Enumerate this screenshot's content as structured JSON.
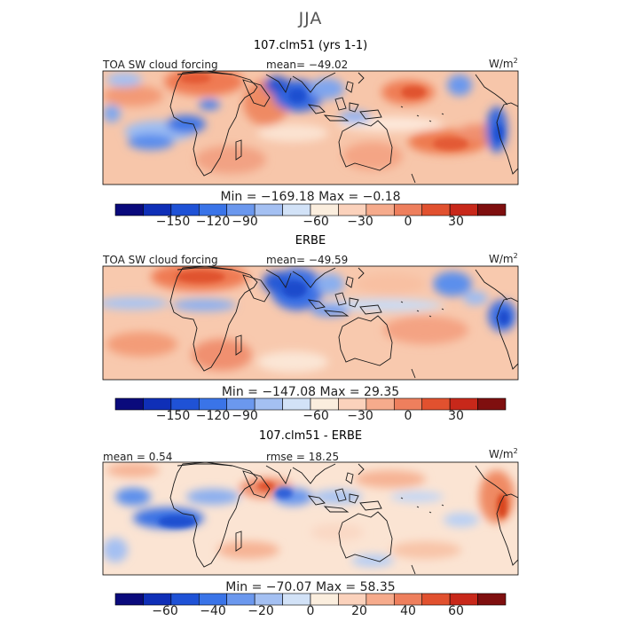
{
  "title": "JJA",
  "panels": [
    {
      "title": "107.clm51 (yrs 1-1)",
      "left_label": "TOA SW cloud forcing",
      "center_label": "mean=  −49.02",
      "unit": "W/m",
      "unit_exp": "2",
      "stats": "Min = −169.18  Max =   −0.18",
      "colorbar_ticks": [
        "−150",
        "−120",
        "−90",
        "−60",
        "−30",
        "0",
        "30"
      ],
      "colorbar_colors": [
        "#0a0a7c",
        "#0f2fb7",
        "#1f52d6",
        "#3a74e8",
        "#6b98ee",
        "#a4c0f2",
        "#d2e2f7",
        "#fbeede",
        "#fbd2bc",
        "#f6ab8c",
        "#ee7f5d",
        "#e1512f",
        "#c8281a",
        "#7f0f0f"
      ]
    },
    {
      "title": "ERBE",
      "left_label": "TOA SW cloud forcing",
      "center_label": "mean=  −49.59",
      "unit": "W/m",
      "unit_exp": "2",
      "stats": "Min = −147.08  Max =   29.35",
      "colorbar_ticks": [
        "−150",
        "−120",
        "−90",
        "−60",
        "−30",
        "0",
        "30"
      ],
      "colorbar_colors": [
        "#0a0a7c",
        "#0f2fb7",
        "#1f52d6",
        "#3a74e8",
        "#6b98ee",
        "#a4c0f2",
        "#d2e2f7",
        "#fbeede",
        "#fbd2bc",
        "#f6ab8c",
        "#ee7f5d",
        "#e1512f",
        "#c8281a",
        "#7f0f0f"
      ]
    },
    {
      "title": "107.clm51 - ERBE",
      "left_label": "mean =   0.54",
      "center_label": "rmse =   18.25",
      "unit": "W/m",
      "unit_exp": "2",
      "stats": "Min = −70.07  Max =   58.35",
      "colorbar_ticks": [
        "−60",
        "−40",
        "−20",
        "0",
        "20",
        "40",
        "60"
      ],
      "colorbar_colors": [
        "#0a0a7c",
        "#0f2fb7",
        "#1f52d6",
        "#3a74e8",
        "#6b98ee",
        "#a4c0f2",
        "#d2e2f7",
        "#fbeede",
        "#fbd2bc",
        "#f6ab8c",
        "#ee7f5d",
        "#e1512f",
        "#c8281a",
        "#7f0f0f"
      ]
    }
  ],
  "colors": {
    "warm_base": "#f7c3a6",
    "warm_strong": "#ef8862",
    "cool": "#7fa7ef",
    "cool_strong": "#2f63da",
    "coast": "#1a1a1a"
  }
}
